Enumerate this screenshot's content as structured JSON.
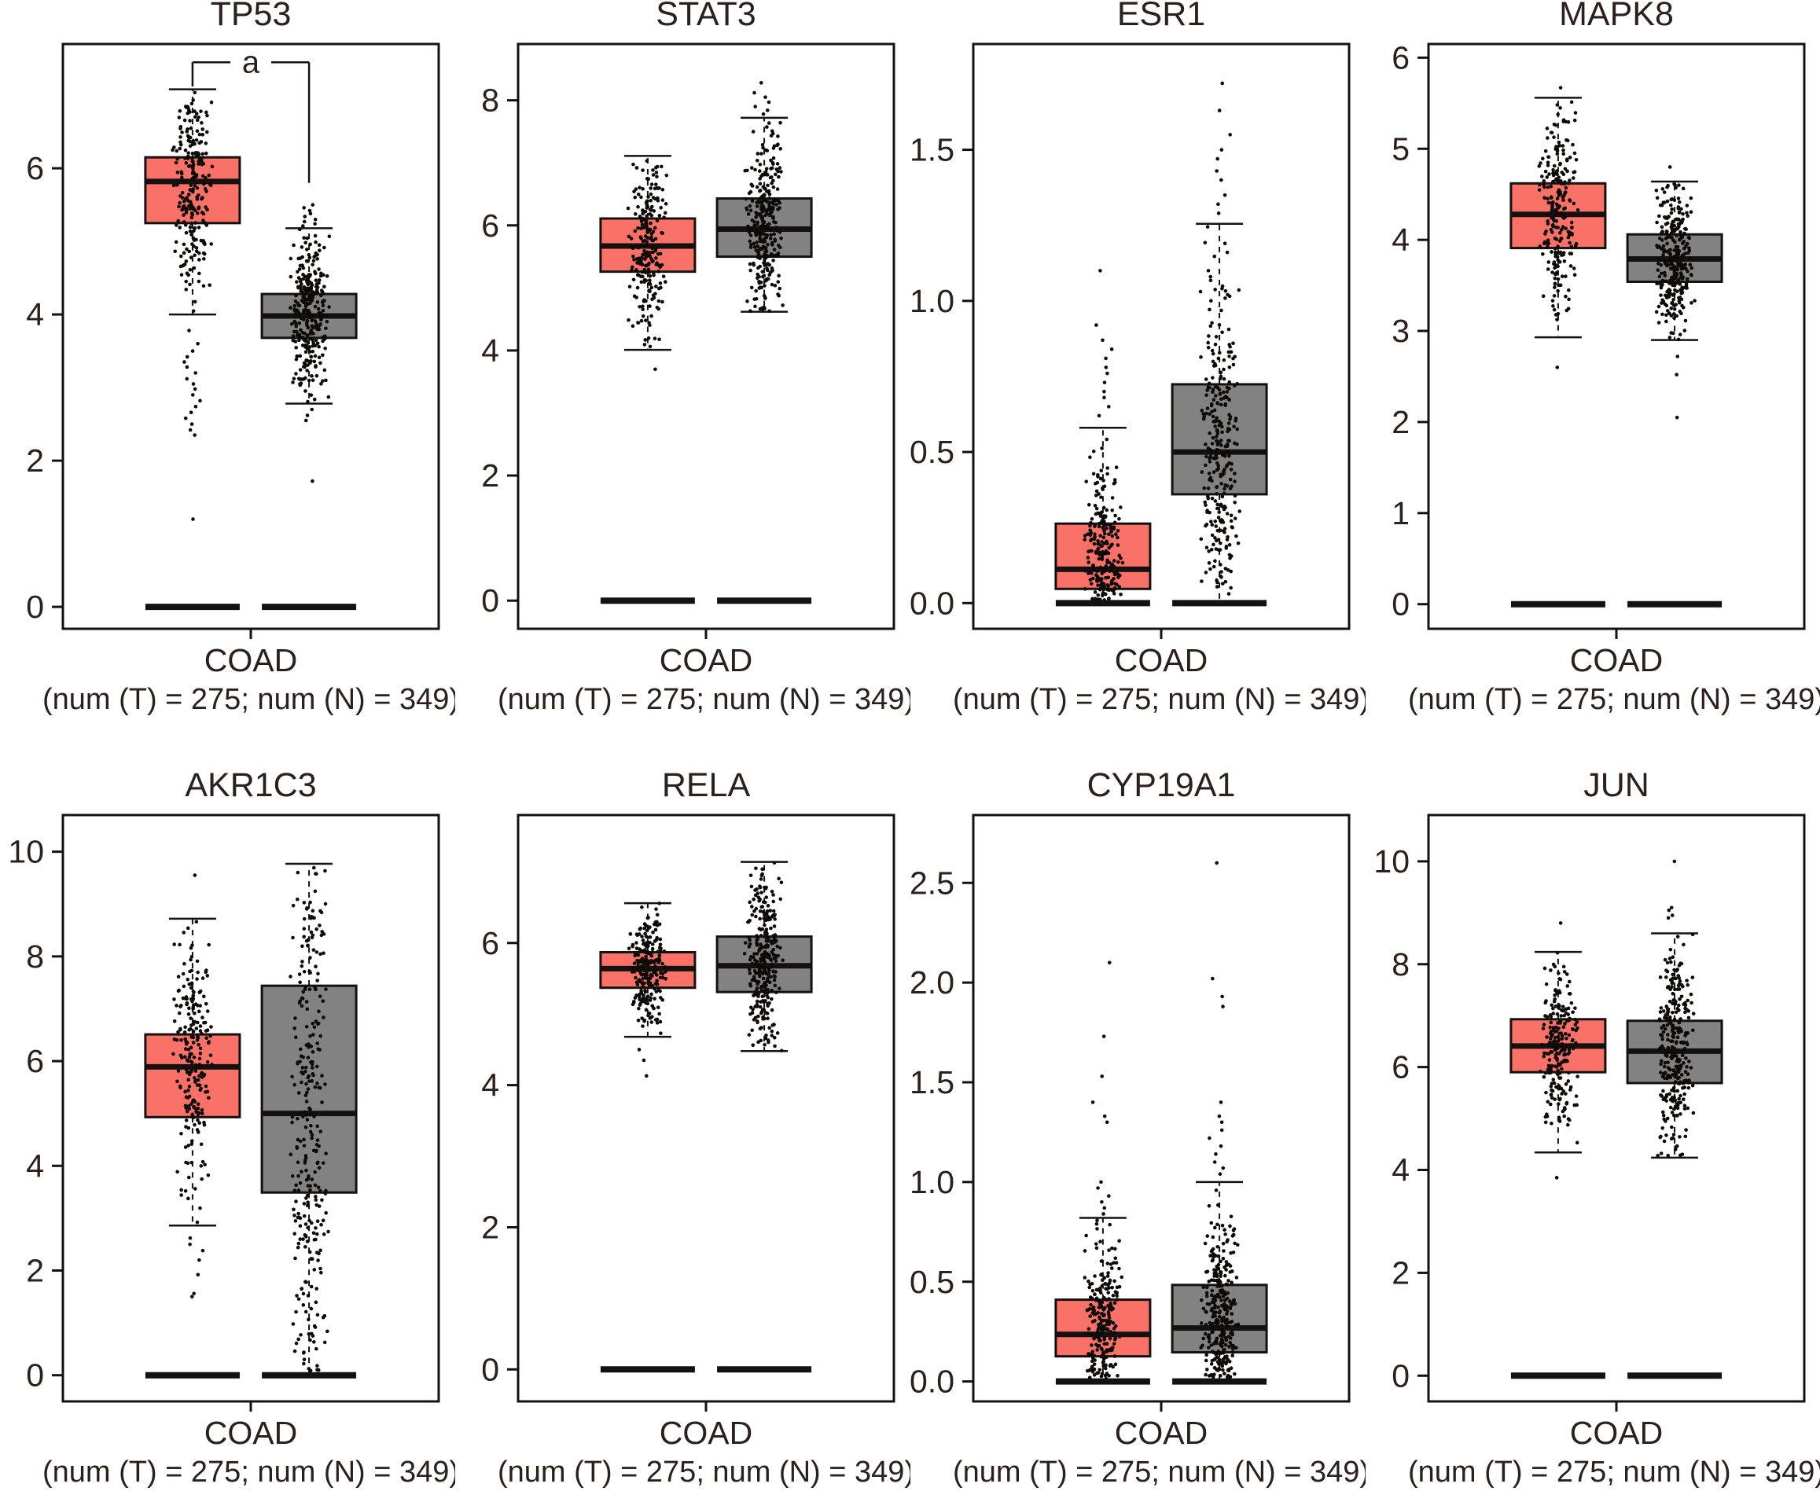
{
  "figure": {
    "background": "#ffffff",
    "text_color": "#2b201b",
    "line_color": "#141110",
    "point_color": "#0e0a08",
    "tumor_color": "#fa7168",
    "normal_color": "#828282",
    "cohort_label": "COAD",
    "sample_note": "(num (T) = 275; num (N) = 349)",
    "num_tumor": 275,
    "num_normal": 349,
    "significance_label": "a"
  },
  "chart_data": [
    {
      "type": "boxplot",
      "title": "TP53",
      "xlabel": "COAD",
      "sublabel": "(num (T) = 275; num (N) = 349)",
      "ylim": [
        -0.3,
        7.7
      ],
      "yticks": [
        0,
        2,
        4,
        6
      ],
      "tick_decimals": 0,
      "significance": {
        "label": "a",
        "left_from": 7.12,
        "bar_y": 7.45,
        "right_to": 5.8
      },
      "series": [
        {
          "name": "tumor",
          "n": 275,
          "q1": 5.25,
          "median": 5.82,
          "q3": 6.15,
          "whisker_low": 4.0,
          "whisker_high": 7.08,
          "cap_low": true,
          "zero_strip": true,
          "cloud_n": 230,
          "outliers": [
            3.78,
            3.6,
            3.5,
            3.42,
            3.35,
            3.28,
            3.2,
            3.12,
            3.05,
            2.98,
            2.9,
            2.82,
            2.74,
            2.66,
            2.58,
            2.5,
            2.42,
            2.35,
            1.2
          ]
        },
        {
          "name": "normal",
          "n": 349,
          "q1": 3.68,
          "median": 3.98,
          "q3": 4.28,
          "whisker_low": 2.78,
          "whisker_high": 5.18,
          "cap_low": true,
          "zero_strip": true,
          "cloud_n": 300,
          "outliers": [
            5.5,
            5.46,
            5.42,
            5.38,
            5.34,
            5.3,
            5.27,
            5.24,
            5.21,
            2.7,
            2.62,
            2.55,
            1.72
          ]
        }
      ]
    },
    {
      "type": "boxplot",
      "title": "STAT3",
      "xlabel": "COAD",
      "sublabel": "(num (T) = 275; num (N) = 349)",
      "ylim": [
        -0.45,
        8.9
      ],
      "yticks": [
        0,
        2,
        4,
        6,
        8
      ],
      "tick_decimals": 0,
      "series": [
        {
          "name": "tumor",
          "n": 275,
          "q1": 5.26,
          "median": 5.67,
          "q3": 6.11,
          "whisker_low": 4.01,
          "whisker_high": 7.11,
          "cap_low": true,
          "zero_strip": true,
          "cloud_n": 230,
          "outliers": [
            3.7
          ]
        },
        {
          "name": "normal",
          "n": 349,
          "q1": 5.5,
          "median": 5.94,
          "q3": 6.43,
          "whisker_low": 4.62,
          "whisker_high": 7.72,
          "cap_low": true,
          "zero_strip": true,
          "cloud_n": 300,
          "outliers": [
            8.28,
            8.12,
            8.05,
            7.97,
            7.9,
            7.84,
            7.78
          ]
        }
      ]
    },
    {
      "type": "boxplot",
      "title": "ESR1",
      "xlabel": "COAD",
      "sublabel": "(num (T) = 275; num (N) = 349)",
      "ylim": [
        -0.085,
        1.85
      ],
      "yticks": [
        0,
        0.5,
        1.0,
        1.5
      ],
      "tick_decimals": 1,
      "series": [
        {
          "name": "tumor",
          "n": 275,
          "q1": 0.047,
          "median": 0.112,
          "q3": 0.263,
          "whisker_low": 0,
          "whisker_high": 0.58,
          "cap_low": false,
          "zero_strip": true,
          "cloud_n": 230,
          "outliers": [
            1.1,
            0.92,
            0.87,
            0.84,
            0.81,
            0.78,
            0.76,
            0.73,
            0.7,
            0.68,
            0.65,
            0.62
          ]
        },
        {
          "name": "normal",
          "n": 349,
          "q1": 0.36,
          "median": 0.5,
          "q3": 0.724,
          "whisker_low": 0,
          "whisker_high": 1.255,
          "cap_low": false,
          "zero_strip": true,
          "cloud_n": 300,
          "outliers": [
            1.72,
            1.63,
            1.55,
            1.5,
            1.47,
            1.43,
            1.4,
            1.35,
            1.32,
            1.29
          ]
        }
      ]
    },
    {
      "type": "boxplot",
      "title": "MAPK8",
      "xlabel": "COAD",
      "sublabel": "(num (T) = 275; num (N) = 349)",
      "ylim": [
        -0.27,
        6.15
      ],
      "yticks": [
        0,
        1,
        2,
        3,
        4,
        5,
        6
      ],
      "tick_decimals": 0,
      "series": [
        {
          "name": "tumor",
          "n": 275,
          "q1": 3.91,
          "median": 4.28,
          "q3": 4.62,
          "whisker_low": 2.93,
          "whisker_high": 5.56,
          "cap_low": true,
          "zero_strip": true,
          "cloud_n": 230,
          "outliers": [
            5.67,
            2.6
          ]
        },
        {
          "name": "normal",
          "n": 349,
          "q1": 3.54,
          "median": 3.79,
          "q3": 4.06,
          "whisker_low": 2.9,
          "whisker_high": 4.64,
          "cap_low": true,
          "zero_strip": true,
          "cloud_n": 300,
          "outliers": [
            4.8,
            2.72,
            2.52,
            2.05
          ]
        }
      ]
    },
    {
      "type": "boxplot",
      "title": "AKR1C3",
      "xlabel": "COAD",
      "sublabel": "(num (T) = 275; num (N) = 349)",
      "ylim": [
        -0.5,
        10.7
      ],
      "yticks": [
        0,
        2,
        4,
        6,
        8,
        10
      ],
      "tick_decimals": 0,
      "series": [
        {
          "name": "tumor",
          "n": 275,
          "q1": 4.93,
          "median": 5.89,
          "q3": 6.51,
          "whisker_low": 2.86,
          "whisker_high": 8.72,
          "cap_low": true,
          "zero_strip": true,
          "cloud_n": 230,
          "outliers": [
            9.55,
            2.62,
            2.5,
            2.38,
            2.2,
            1.92,
            1.56,
            1.5
          ]
        },
        {
          "name": "normal",
          "n": 349,
          "q1": 3.49,
          "median": 5.0,
          "q3": 7.44,
          "whisker_low": 0,
          "whisker_high": 9.77,
          "cap_low": false,
          "zero_strip": true,
          "cloud_n": 300,
          "outliers": []
        }
      ]
    },
    {
      "type": "boxplot",
      "title": "RELA",
      "xlabel": "COAD",
      "sublabel": "(num (T) = 275; num (N) = 349)",
      "ylim": [
        -0.45,
        7.8
      ],
      "yticks": [
        0,
        2,
        4,
        6
      ],
      "tick_decimals": 0,
      "series": [
        {
          "name": "tumor",
          "n": 275,
          "q1": 5.37,
          "median": 5.64,
          "q3": 5.87,
          "whisker_low": 4.68,
          "whisker_high": 6.56,
          "cap_low": true,
          "zero_strip": true,
          "cloud_n": 230,
          "outliers": [
            4.5,
            4.35,
            4.13
          ]
        },
        {
          "name": "normal",
          "n": 349,
          "q1": 5.31,
          "median": 5.68,
          "q3": 6.09,
          "whisker_low": 4.48,
          "whisker_high": 7.14,
          "cap_low": true,
          "zero_strip": true,
          "cloud_n": 300,
          "outliers": []
        }
      ]
    },
    {
      "type": "boxplot",
      "title": "CYP19A1",
      "xlabel": "COAD",
      "sublabel": "(num (T) = 275; num (N) = 349)",
      "ylim": [
        -0.1,
        2.84
      ],
      "yticks": [
        0,
        0.5,
        1.0,
        1.5,
        2.0,
        2.5
      ],
      "tick_decimals": 1,
      "series": [
        {
          "name": "tumor",
          "n": 275,
          "q1": 0.126,
          "median": 0.236,
          "q3": 0.41,
          "whisker_low": 0,
          "whisker_high": 0.82,
          "cap_low": false,
          "zero_strip": true,
          "cloud_n": 230,
          "outliers": [
            2.1,
            1.73,
            1.53,
            1.4,
            1.33,
            1.3,
            1.0,
            0.97,
            0.93,
            0.9,
            0.87,
            0.84
          ]
        },
        {
          "name": "normal",
          "n": 349,
          "q1": 0.146,
          "median": 0.268,
          "q3": 0.484,
          "whisker_low": 0,
          "whisker_high": 1.0,
          "cap_low": false,
          "zero_strip": true,
          "cloud_n": 300,
          "outliers": [
            2.6,
            2.02,
            1.93,
            1.88,
            1.4,
            1.33,
            1.3,
            1.26,
            1.22,
            1.18,
            1.14,
            1.1,
            1.07,
            1.04
          ]
        }
      ]
    },
    {
      "type": "boxplot",
      "title": "JUN",
      "xlabel": "COAD",
      "sublabel": "(num (T) = 275; num (N) = 349)",
      "ylim": [
        -0.5,
        10.9
      ],
      "yticks": [
        0,
        2,
        4,
        6,
        8,
        10
      ],
      "tick_decimals": 0,
      "series": [
        {
          "name": "tumor",
          "n": 275,
          "q1": 5.9,
          "median": 6.41,
          "q3": 6.93,
          "whisker_low": 4.34,
          "whisker_high": 8.24,
          "cap_low": true,
          "zero_strip": true,
          "cloud_n": 230,
          "outliers": [
            8.8,
            3.85
          ]
        },
        {
          "name": "normal",
          "n": 349,
          "q1": 5.69,
          "median": 6.31,
          "q3": 6.9,
          "whisker_low": 4.24,
          "whisker_high": 8.6,
          "cap_low": true,
          "zero_strip": true,
          "cloud_n": 300,
          "outliers": [
            10.0,
            9.1,
            9.05,
            8.95,
            8.9
          ]
        }
      ]
    }
  ]
}
